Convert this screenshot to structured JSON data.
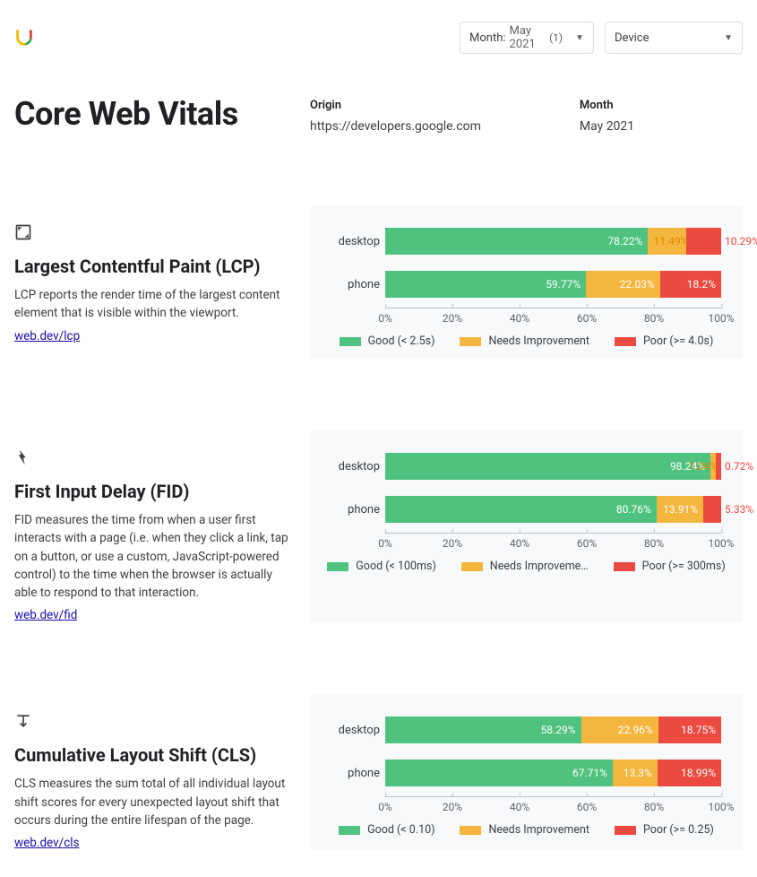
{
  "colors": {
    "good": "#4fc27f",
    "needs": "#f4b63f",
    "poor": "#ea4a3f",
    "panel_bg": "#f8f9fa",
    "text": "#3c4043",
    "link": "#1a0dab"
  },
  "header": {
    "month_filter_label": "Month:",
    "month_filter_value": "May 2021",
    "month_filter_count": "(1)",
    "device_filter_label": "Device"
  },
  "title": "Core Web Vitals",
  "meta": {
    "origin_label": "Origin",
    "origin_value": "https://developers.google.com",
    "month_label": "Month",
    "month_value": "May 2021"
  },
  "axis_ticks": [
    "0%",
    "20%",
    "40%",
    "60%",
    "80%",
    "100%"
  ],
  "metrics": [
    {
      "key": "lcp",
      "title": "Largest Contentful Paint (LCP)",
      "desc": "LCP reports the render time of the largest content element that is visible within the viewport.",
      "link_text": "web.dev/lcp",
      "legend": {
        "good": "Good (< 2.5s)",
        "needs": "Needs Improvement",
        "poor": "Poor (>= 4.0s)"
      },
      "rows": [
        {
          "cat": "desktop",
          "good": 78.22,
          "needs": 11.49,
          "poor": 10.29,
          "good_lbl": "78.22%",
          "needs_lbl": "11.49%",
          "poor_lbl": "10.29%",
          "needs_label_outside": true,
          "poor_label_outside": true
        },
        {
          "cat": "phone",
          "good": 59.77,
          "needs": 22.03,
          "poor": 18.2,
          "good_lbl": "59.77%",
          "needs_lbl": "22.03%",
          "poor_lbl": "18.2%",
          "needs_label_outside": false,
          "poor_label_outside": false
        }
      ]
    },
    {
      "key": "fid",
      "title": "First Input Delay (FID)",
      "desc": "FID measures the time from when a user first interacts with a page (i.e. when they click a link, tap on a button, or use a custom, JavaScript-powered control) to the time when the browser is actually able to respond to that interaction.",
      "link_text": "web.dev/fid",
      "legend": {
        "good": "Good (< 100ms)",
        "needs": "Needs Improveme…",
        "poor": "Poor (>= 300ms)"
      },
      "rows": [
        {
          "cat": "desktop",
          "good": 98.24,
          "needs": 1.04,
          "poor": 0.72,
          "good_lbl": "98.24%",
          "needs_lbl": "1.04%",
          "poor_lbl": "0.72%",
          "needs_label_outside": true,
          "poor_label_outside": true
        },
        {
          "cat": "phone",
          "good": 80.76,
          "needs": 13.91,
          "poor": 5.33,
          "good_lbl": "80.76%",
          "needs_lbl": "13.91%",
          "poor_lbl": "5.33%",
          "needs_label_outside": false,
          "poor_label_outside": true
        }
      ]
    },
    {
      "key": "cls",
      "title": "Cumulative Layout Shift (CLS)",
      "desc": "CLS measures the sum total of all individual layout shift scores for every unexpected layout shift that occurs during the entire lifespan of the page.",
      "link_text": "web.dev/cls",
      "legend": {
        "good": "Good (< 0.10)",
        "needs": "Needs Improvement",
        "poor": "Poor (>= 0.25)"
      },
      "rows": [
        {
          "cat": "desktop",
          "good": 58.29,
          "needs": 22.96,
          "poor": 18.75,
          "good_lbl": "58.29%",
          "needs_lbl": "22.96%",
          "poor_lbl": "18.75%",
          "needs_label_outside": false,
          "poor_label_outside": false
        },
        {
          "cat": "phone",
          "good": 67.71,
          "needs": 13.3,
          "poor": 18.99,
          "good_lbl": "67.71%",
          "needs_lbl": "13.3%",
          "poor_lbl": "18.99%",
          "needs_label_outside": false,
          "poor_label_outside": false
        }
      ]
    }
  ]
}
